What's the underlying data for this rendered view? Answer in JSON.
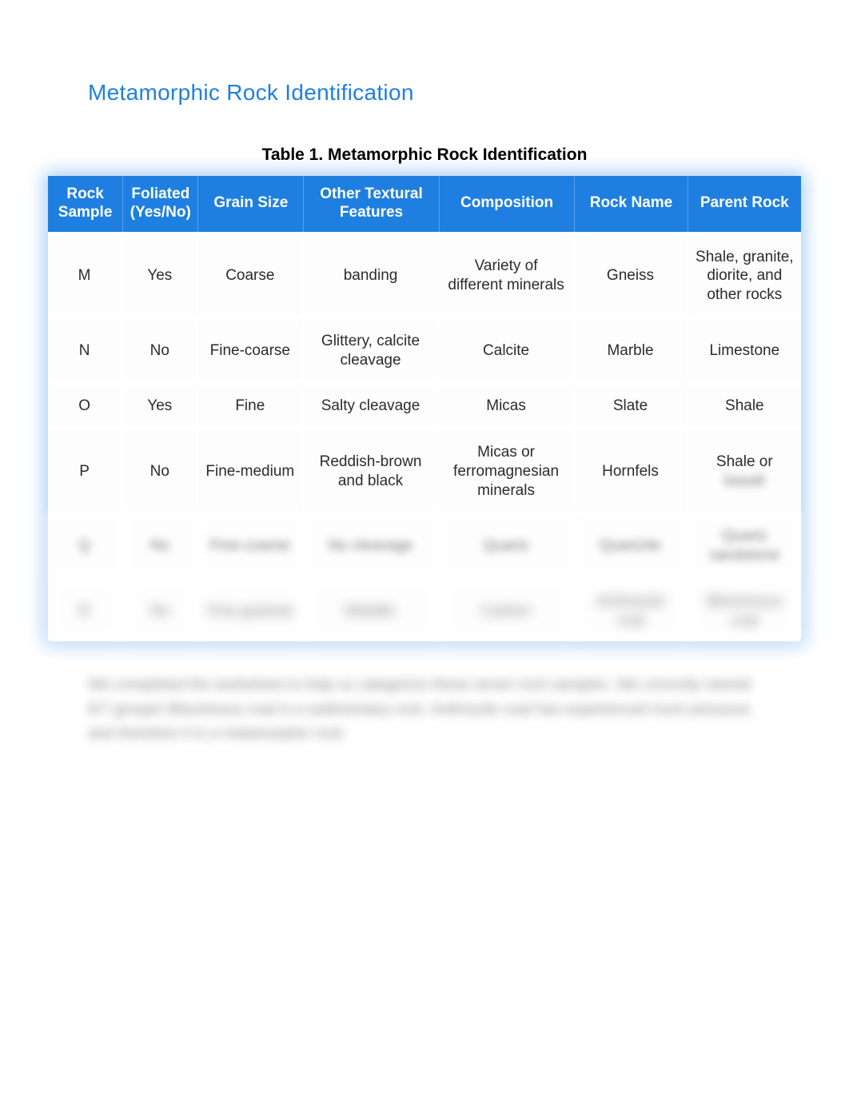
{
  "page_title": "Metamorphic Rock Identification",
  "page_title_color": "#1f7fe0",
  "table": {
    "caption": "Table 1. Metamorphic Rock Identification",
    "header_bg": "#1f7fe0",
    "header_text_color": "#ffffff",
    "columns": [
      {
        "label": "Rock Sample",
        "width": "10%"
      },
      {
        "label": "Foliated (Yes/No)",
        "width": "10%"
      },
      {
        "label": "Grain Size",
        "width": "14%"
      },
      {
        "label": "Other Textural Features",
        "width": "18%"
      },
      {
        "label": "Composition",
        "width": "18%"
      },
      {
        "label": "Rock Name",
        "width": "15%"
      },
      {
        "label": "Parent Rock",
        "width": "15%"
      }
    ],
    "rows": [
      {
        "sample": "M",
        "foliated": "Yes",
        "grain": "Coarse",
        "features": "banding",
        "composition": "Variety of different minerals",
        "name": "Gneiss",
        "parent": "Shale, granite, diorite, and other rocks",
        "blurred": false
      },
      {
        "sample": "N",
        "foliated": "No",
        "grain": "Fine-coarse",
        "features": "Glittery, calcite cleavage",
        "composition": "Calcite",
        "name": "Marble",
        "parent": "Limestone",
        "blurred": false
      },
      {
        "sample": "O",
        "foliated": "Yes",
        "grain": "Fine",
        "features": "Salty cleavage",
        "composition": "Micas",
        "name": "Slate",
        "parent": "Shale",
        "blurred": false
      },
      {
        "sample": "P",
        "foliated": "No",
        "grain": "Fine-medium",
        "features": "Reddish-brown and black",
        "composition": "Micas or ferromagnesian minerals",
        "name": "Hornfels",
        "parent": "Shale or",
        "parent_blurred_extra": "basalt",
        "blurred": false
      },
      {
        "sample": "Q",
        "foliated": "No",
        "grain": "Fine-coarse",
        "features": "No cleavage",
        "composition": "Quartz",
        "name": "Quartzite",
        "parent": "Quartz sandstone",
        "blurred": true
      },
      {
        "sample": "R",
        "foliated": "No",
        "grain": "Fine-grained",
        "features": "Metallic",
        "composition": "Carbon",
        "name": "Anthracite coal",
        "parent": "Bituminous coal",
        "blurred": true
      }
    ]
  },
  "paragraph": "We completed the worksheet to help us categorize these seven rock samples. We correctly named 6/7 groups! Bituminous coal is a sedimentary rock. Anthracite coal has experienced more pressure, and therefore it is a metamorphic rock."
}
